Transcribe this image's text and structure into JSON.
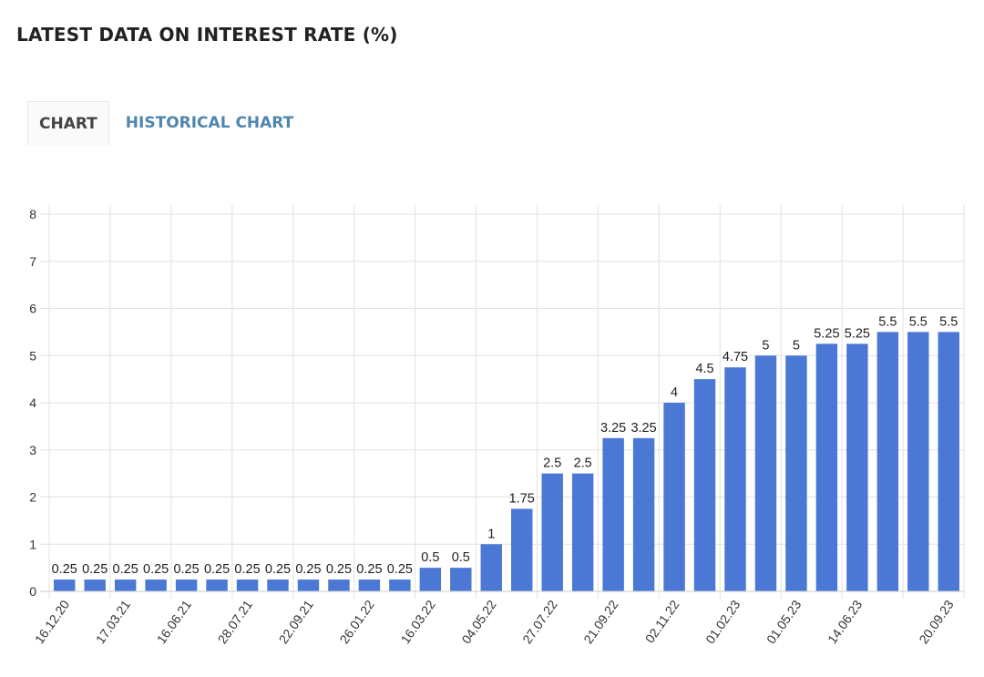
{
  "header": {
    "title": "LATEST DATA ON INTEREST RATE (%)"
  },
  "tabs": [
    {
      "label": "CHART",
      "active": true
    },
    {
      "label": "HISTORICAL CHART",
      "active": false
    }
  ],
  "colors": {
    "bar": "#4a78d4",
    "grid": "#e2e2e2",
    "axis_text": "#333333",
    "tab_link": "#4f86ae"
  },
  "chart_data": {
    "type": "bar",
    "title": "",
    "xlabel": "",
    "ylabel": "",
    "ylim": [
      0,
      8
    ],
    "yticks": [
      0,
      1,
      2,
      3,
      4,
      5,
      6,
      7,
      8
    ],
    "grid": true,
    "categories": [
      "16.12.20",
      "",
      "17.03.21",
      "",
      "16.06.21",
      "",
      "28.07.21",
      "",
      "22.09.21",
      "",
      "26.01.22",
      "",
      "16.03.22",
      "",
      "04.05.22",
      "",
      "27.07.22",
      "",
      "21.09.22",
      "",
      "02.11.22",
      "",
      "01.02.23",
      "",
      "01.05.23",
      "",
      "14.06.23",
      "",
      "",
      "20.09.23"
    ],
    "values": [
      0.25,
      0.25,
      0.25,
      0.25,
      0.25,
      0.25,
      0.25,
      0.25,
      0.25,
      0.25,
      0.25,
      0.25,
      0.5,
      0.5,
      1,
      1.75,
      2.5,
      2.5,
      3.25,
      3.25,
      4,
      4.5,
      4.75,
      5,
      5,
      5.25,
      5.25,
      5.5,
      5.5,
      5.5
    ],
    "data_labels": [
      "0.25",
      "0.25",
      "0.25",
      "0.25",
      "0.25",
      "0.25",
      "0.25",
      "0.25",
      "0.25",
      "0.25",
      "0.25",
      "0.25",
      "0.5",
      "0.5",
      "1",
      "1.75",
      "2.5",
      "2.5",
      "3.25",
      "3.25",
      "4",
      "4.5",
      "4.75",
      "5",
      "5",
      "5.25",
      "5.25",
      "5.5",
      "5.5",
      "5.5"
    ]
  }
}
